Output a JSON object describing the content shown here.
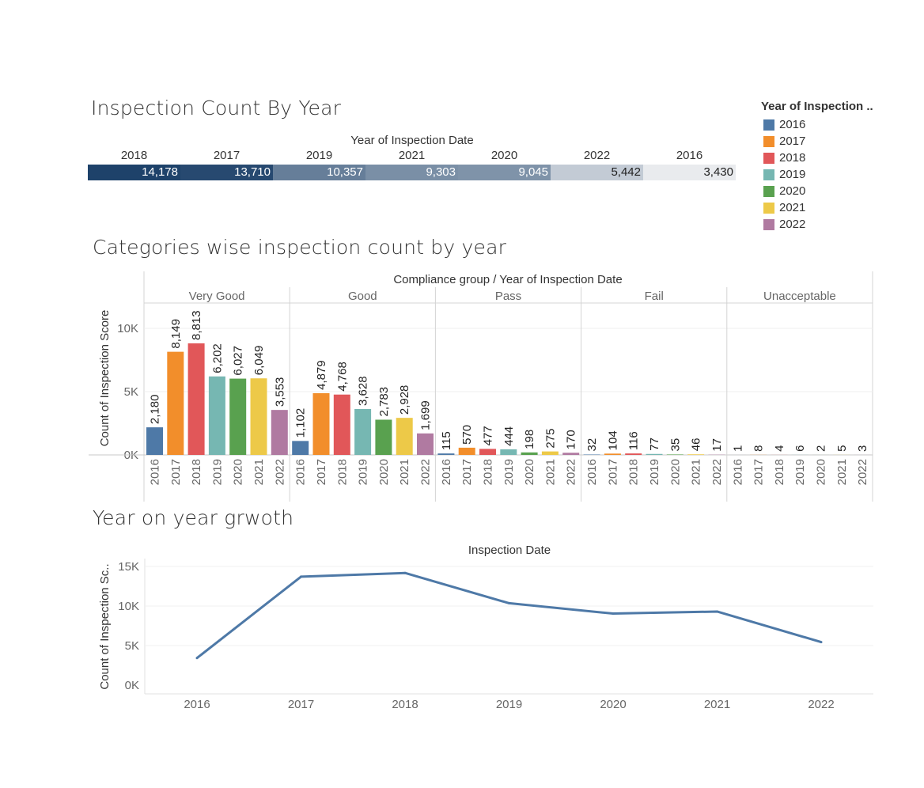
{
  "titles": {
    "heatmap": "Inspection Count By Year",
    "bars": "Categories wise inspection count by year",
    "line": "Year on year grwoth"
  },
  "legend": {
    "title": "Year of Inspection ..",
    "items": [
      {
        "label": "2016",
        "color": "#4e79a7"
      },
      {
        "label": "2017",
        "color": "#f28e2b"
      },
      {
        "label": "2018",
        "color": "#e15759"
      },
      {
        "label": "2019",
        "color": "#76b7b2"
      },
      {
        "label": "2020",
        "color": "#59a14f"
      },
      {
        "label": "2021",
        "color": "#edc948"
      },
      {
        "label": "2022",
        "color": "#b07aa1"
      }
    ]
  },
  "chart_data": [
    {
      "type": "heatmap",
      "title": "Inspection Count By Year",
      "header": "Year of Inspection Date",
      "categories": [
        "2018",
        "2017",
        "2019",
        "2021",
        "2020",
        "2022",
        "2016"
      ],
      "values": [
        14178,
        13710,
        10357,
        9303,
        9045,
        5442,
        3430
      ],
      "labels": [
        "14,178",
        "13,710",
        "10,357",
        "9,303",
        "9,045",
        "5,442",
        "3,430"
      ]
    },
    {
      "type": "bar",
      "title": "Categories wise inspection count by year",
      "header": "Compliance group  /  Year of Inspection Date",
      "ylabel": "Count of Inspection Score",
      "ylim": [
        0,
        12000
      ],
      "yticks": [
        {
          "v": 0,
          "label": "0K"
        },
        {
          "v": 5000,
          "label": "5K"
        },
        {
          "v": 10000,
          "label": "10K"
        }
      ],
      "years": [
        "2016",
        "2017",
        "2018",
        "2019",
        "2020",
        "2021",
        "2022"
      ],
      "groups": [
        {
          "name": "Very Good",
          "values": [
            2180,
            8149,
            8813,
            6202,
            6027,
            6049,
            3553
          ],
          "labels": [
            "2,180",
            "8,149",
            "8,813",
            "6,202",
            "6,027",
            "6,049",
            "3,553"
          ]
        },
        {
          "name": "Good",
          "values": [
            1102,
            4879,
            4768,
            3628,
            2783,
            2928,
            1699
          ],
          "labels": [
            "1,102",
            "4,879",
            "4,768",
            "3,628",
            "2,783",
            "2,928",
            "1,699"
          ]
        },
        {
          "name": "Pass",
          "values": [
            115,
            570,
            477,
            444,
            198,
            275,
            170
          ],
          "labels": [
            "115",
            "570",
            "477",
            "444",
            "198",
            "275",
            "170"
          ]
        },
        {
          "name": "Fail",
          "values": [
            32,
            104,
            116,
            77,
            35,
            46,
            17
          ],
          "labels": [
            "32",
            "104",
            "116",
            "77",
            "35",
            "46",
            "17"
          ]
        },
        {
          "name": "Unacceptable",
          "values": [
            1,
            8,
            4,
            6,
            2,
            5,
            3
          ],
          "labels": [
            "1",
            "8",
            "4",
            "6",
            "2",
            "5",
            "3"
          ]
        }
      ]
    },
    {
      "type": "line",
      "title": "Year on year grwoth",
      "header": "Inspection Date",
      "ylabel": "Count of Inspection Sc..",
      "x": [
        "2016",
        "2017",
        "2018",
        "2019",
        "2020",
        "2021",
        "2022"
      ],
      "values": [
        3430,
        13710,
        14178,
        10357,
        9045,
        9303,
        5442
      ],
      "ylim": [
        0,
        15500
      ],
      "yticks": [
        {
          "v": 0,
          "label": "0K"
        },
        {
          "v": 5000,
          "label": "5K"
        },
        {
          "v": 10000,
          "label": "10K"
        },
        {
          "v": 15000,
          "label": "15K"
        }
      ],
      "color": "#4e79a7"
    }
  ]
}
